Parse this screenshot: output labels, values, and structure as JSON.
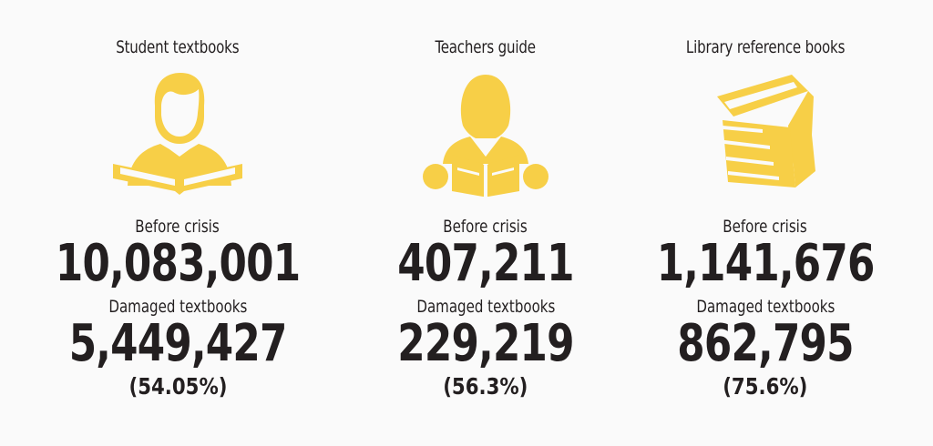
{
  "categories": [
    {
      "title": "Student textbooks",
      "icon": "student-reading-icon",
      "before_label": "Before crisis",
      "before_value": "10,083,001",
      "damaged_label": "Damaged textbooks",
      "damaged_value": "5,449,427",
      "damaged_percent": "(54.05%)"
    },
    {
      "title": "Teachers guide",
      "icon": "teacher-reading-icon",
      "before_label": "Before crisis",
      "before_value": "407,211",
      "damaged_label": "Damaged textbooks",
      "damaged_value": "229,219",
      "damaged_percent": "(56.3%)"
    },
    {
      "title": "Library reference books",
      "icon": "book-stack-icon",
      "before_label": "Before crisis",
      "before_value": "1,141,676",
      "damaged_label": "Damaged textbooks",
      "damaged_value": "862,795",
      "damaged_percent": "(75.6%)"
    }
  ],
  "colors": {
    "icon": "#f7cf47",
    "text": "#231f20",
    "background": "#fafafa"
  }
}
